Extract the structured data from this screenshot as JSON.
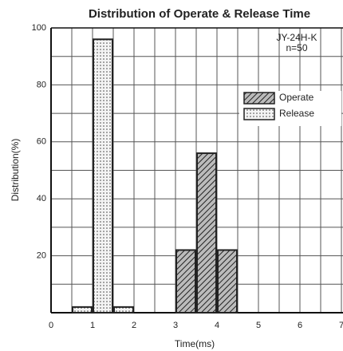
{
  "chart_data": {
    "type": "histogram",
    "title": "Distribution of Operate & Release Time",
    "xlabel": "Time(ms)",
    "ylabel": "Distribution(%)",
    "annotations": [
      "JY-24H-K",
      "n=50"
    ],
    "series": [
      {
        "name": "Operate",
        "color": "#222222",
        "pattern": "hatch",
        "bins": [
          3,
          3.5,
          4,
          4.5
        ],
        "values": [
          22,
          56,
          22
        ]
      },
      {
        "name": "Release",
        "color": "#222222",
        "pattern": "dots",
        "bins": [
          0.5,
          1,
          1.5,
          2
        ],
        "values": [
          2,
          96,
          2
        ]
      }
    ],
    "xlim": [
      0,
      7
    ],
    "xticks": [
      0,
      1,
      2,
      3,
      4,
      5,
      6,
      7
    ],
    "ylim": [
      0,
      100
    ],
    "yticks": [
      20,
      40,
      60,
      80,
      100
    ],
    "grid": true,
    "legend": "upper right"
  }
}
